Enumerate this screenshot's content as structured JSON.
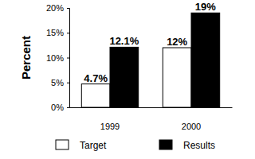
{
  "chart_data": {
    "type": "bar",
    "y_label": "Percent",
    "categories": [
      "1999",
      "2000"
    ],
    "series": [
      {
        "name": "Target",
        "color": "#ffffff",
        "values": [
          4.7,
          12
        ],
        "value_labels": [
          "4.7%",
          "12%"
        ]
      },
      {
        "name": "Results",
        "color": "#000000",
        "values": [
          12.1,
          19
        ],
        "value_labels": [
          "12.1%",
          "19%"
        ]
      }
    ],
    "ylim": [
      0,
      20
    ],
    "yticks": [
      {
        "value": 0,
        "label": "0%"
      },
      {
        "value": 5,
        "label": "5%"
      },
      {
        "value": 10,
        "label": "10%"
      },
      {
        "value": 15,
        "label": "15%"
      },
      {
        "value": 20,
        "label": "20%"
      }
    ],
    "grid": false,
    "data_labels": true,
    "legend": "bottom"
  }
}
